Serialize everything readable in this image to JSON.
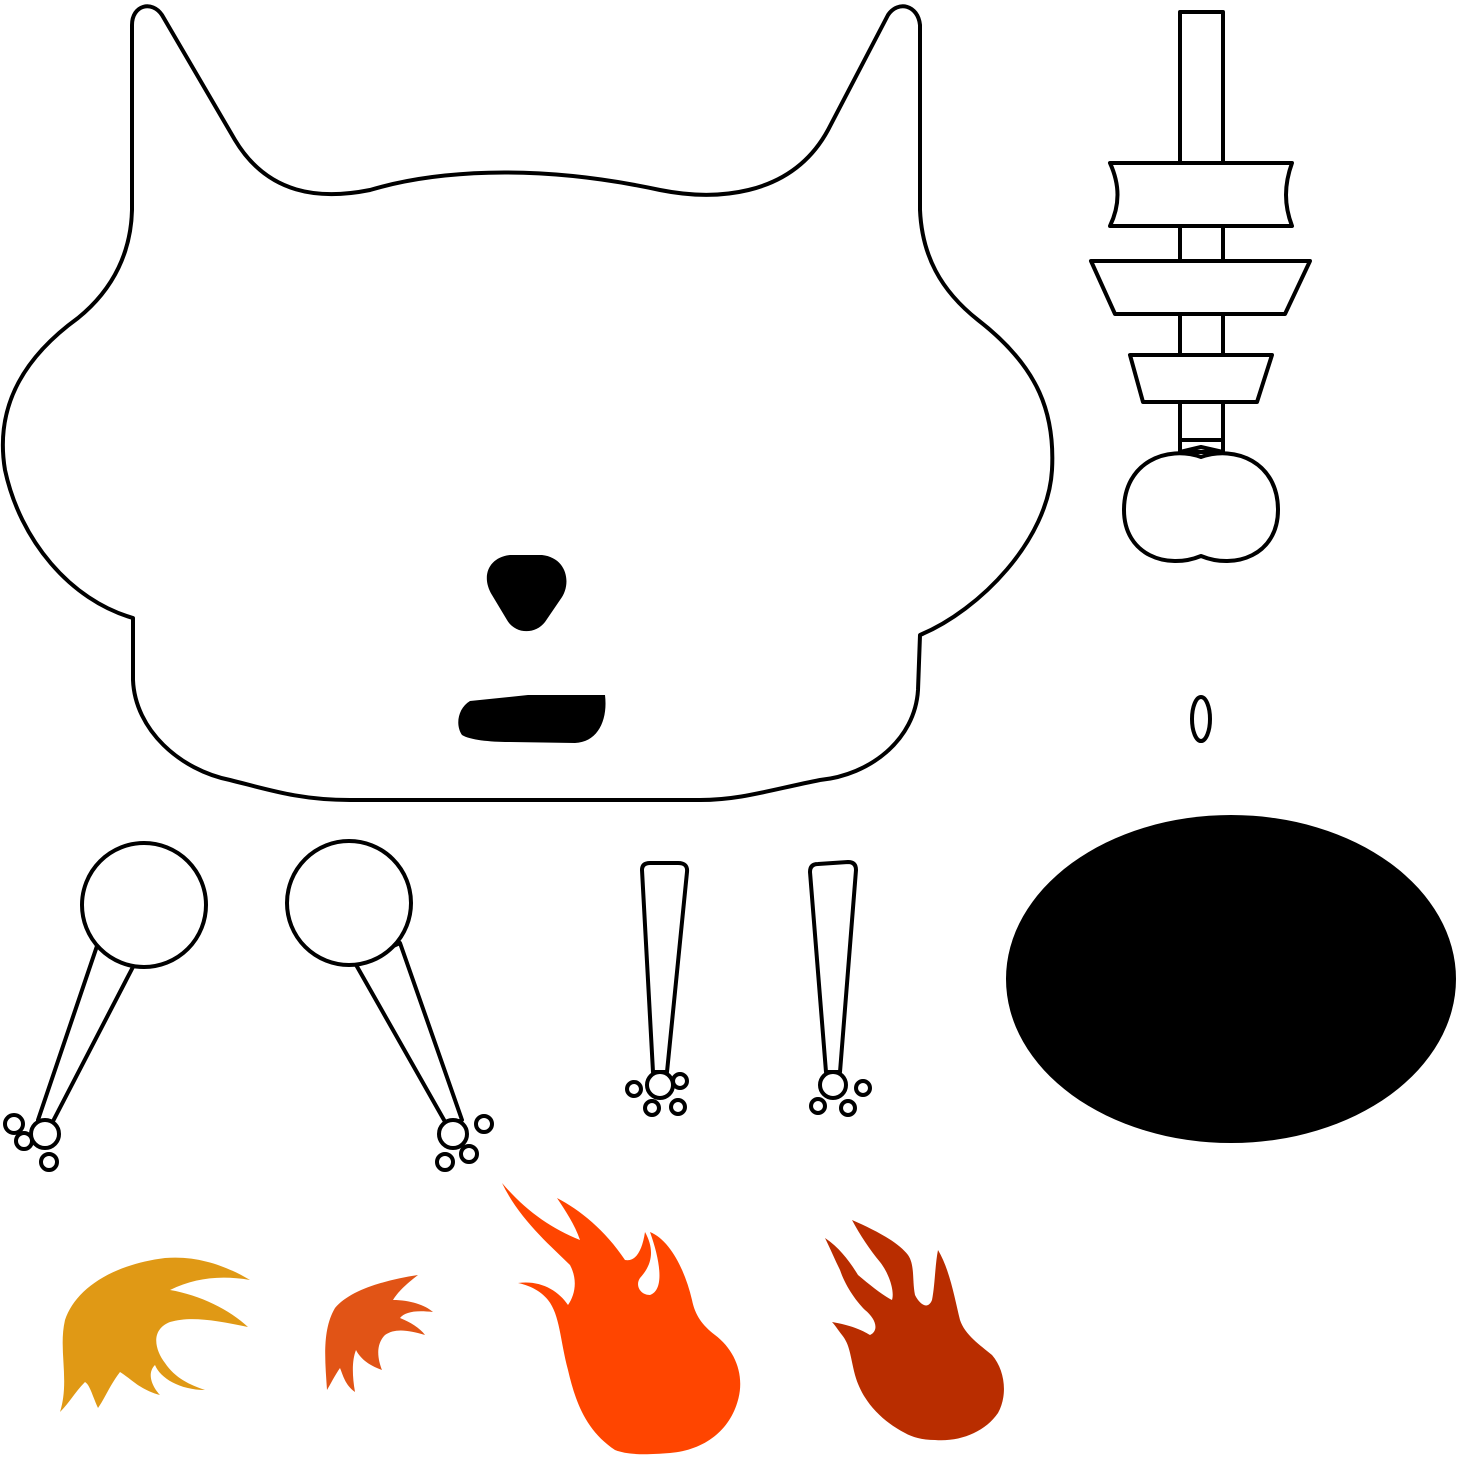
{
  "sheet": {
    "background_color": "#ffffff",
    "outline_color": "#000000",
    "parts": [
      {
        "name": "cat-head",
        "icon": "cat-head-icon"
      },
      {
        "name": "nose",
        "icon": "nose-icon"
      },
      {
        "name": "mouth",
        "icon": "mouth-icon"
      },
      {
        "name": "spine-skewer",
        "icon": "spine-skewer-icon"
      },
      {
        "name": "small-oval",
        "icon": "small-oval-icon"
      },
      {
        "name": "body-oval",
        "icon": "body-oval-icon"
      },
      {
        "name": "front-leg-left",
        "icon": "leg-icon"
      },
      {
        "name": "front-leg-right",
        "icon": "leg-icon"
      },
      {
        "name": "hind-leg-left",
        "icon": "leg-icon"
      },
      {
        "name": "hind-leg-right",
        "icon": "leg-icon"
      }
    ],
    "flames": [
      {
        "name": "flame-gold",
        "icon": "flame-icon",
        "color": "#e09915"
      },
      {
        "name": "flame-orange",
        "icon": "flame-icon",
        "color": "#e15416"
      },
      {
        "name": "flame-red-orange",
        "icon": "flame-icon",
        "color": "#ff4500"
      },
      {
        "name": "flame-dark-red",
        "icon": "flame-icon",
        "color": "#b92d00"
      }
    ]
  }
}
